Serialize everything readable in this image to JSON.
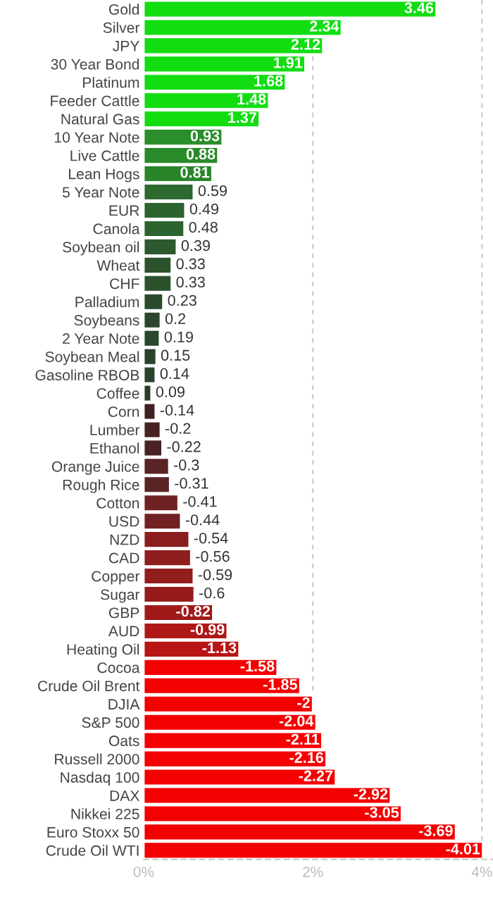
{
  "chart_data": {
    "type": "bar",
    "orientation": "horizontal",
    "categories": [
      "Gold",
      "Silver",
      "JPY",
      "30 Year Bond",
      "Platinum",
      "Feeder Cattle",
      "Natural Gas",
      "10 Year Note",
      "Live Cattle",
      "Lean Hogs",
      "5 Year Note",
      "EUR",
      "Canola",
      "Soybean oil",
      "Wheat",
      "CHF",
      "Palladium",
      "Soybeans",
      "2 Year Note",
      "Soybean Meal",
      "Gasoline RBOB",
      "Coffee",
      "Corn",
      "Lumber",
      "Ethanol",
      "Orange Juice",
      "Rough Rice",
      "Cotton",
      "USD",
      "NZD",
      "CAD",
      "Copper",
      "Sugar",
      "GBP",
      "AUD",
      "Heating Oil",
      "Cocoa",
      "Crude Oil Brent",
      "DJIA",
      "S&P 500",
      "Oats",
      "Russell 2000",
      "Nasdaq 100",
      "DAX",
      "Nikkei 225",
      "Euro Stoxx 50",
      "Crude Oil WTI"
    ],
    "values": [
      3.46,
      2.34,
      2.12,
      1.91,
      1.68,
      1.48,
      1.37,
      0.93,
      0.88,
      0.81,
      0.59,
      0.49,
      0.48,
      0.39,
      0.33,
      0.33,
      0.23,
      0.2,
      0.19,
      0.15,
      0.14,
      0.09,
      -0.14,
      -0.2,
      -0.22,
      -0.3,
      -0.31,
      -0.41,
      -0.44,
      -0.54,
      -0.56,
      -0.59,
      -0.6,
      -0.82,
      -0.99,
      -1.13,
      -1.58,
      -1.85,
      -2,
      -2.04,
      -2.11,
      -2.16,
      -2.27,
      -2.92,
      -3.05,
      -3.69,
      -4.01
    ],
    "base": [
      0,
      0,
      0,
      0,
      0,
      0,
      0,
      0,
      0,
      0,
      0,
      0,
      0,
      0,
      0,
      0,
      0,
      0,
      0,
      0,
      0,
      0,
      0.14,
      0.2,
      0.22,
      0.3,
      0.31,
      0.41,
      0.44,
      0.54,
      0.56,
      0.59,
      0.6,
      0.82,
      0.99,
      1.13,
      1.58,
      1.85,
      2,
      2.04,
      2.11,
      2.16,
      2.27,
      2.92,
      3.05,
      3.69,
      4.01
    ],
    "value_labels": [
      "3.46",
      "2.34",
      "2.12",
      "1.91",
      "1.68",
      "1.48",
      "1.37",
      "0.93",
      "0.88",
      "0.81",
      "0.59",
      "0.49",
      "0.48",
      "0.39",
      "0.33",
      "0.33",
      "0.23",
      "0.2",
      "0.19",
      "0.15",
      "0.14",
      "0.09",
      "-0.14",
      "-0.2",
      "-0.22",
      "-0.3",
      "-0.31",
      "-0.41",
      "-0.44",
      "-0.54",
      "-0.56",
      "-0.59",
      "-0.6",
      "-0.82",
      "-0.99",
      "-1.13",
      "-1.58",
      "-1.85",
      "-2",
      "-2.04",
      "-2.11",
      "-2.16",
      "-2.27",
      "-2.92",
      "-3.05",
      "-3.69",
      "-4.01"
    ],
    "colors": [
      "#11dd11",
      "#11dd11",
      "#11dd11",
      "#11dd11",
      "#11dd11",
      "#11dd11",
      "#11dd11",
      "#2a8f2a",
      "#2a8a2a",
      "#2a852a",
      "#2d6a30",
      "#2c6430",
      "#2c6430",
      "#2c5a2e",
      "#2b522d",
      "#2b522d",
      "#2a4a2c",
      "#2a462c",
      "#2a462c",
      "#2a422b",
      "#2a422b",
      "#2a3e2b",
      "#3e2222",
      "#462222",
      "#482222",
      "#582424",
      "#5a2424",
      "#6e2222",
      "#722222",
      "#8a1e1e",
      "#8e1e1e",
      "#921d1d",
      "#961c1c",
      "#a01a1a",
      "#b01818",
      "#b81515",
      "#f50000",
      "#f50000",
      "#f50000",
      "#f50000",
      "#f50000",
      "#f50000",
      "#f50000",
      "#f50000",
      "#f50000",
      "#f50000",
      "#f50000"
    ],
    "xlim": [
      0,
      4.13
    ],
    "xticks": [
      {
        "value": 0,
        "label": "0%"
      },
      {
        "value": 2,
        "label": "2%"
      },
      {
        "value": 4,
        "label": "4%"
      }
    ],
    "grid": "x"
  }
}
